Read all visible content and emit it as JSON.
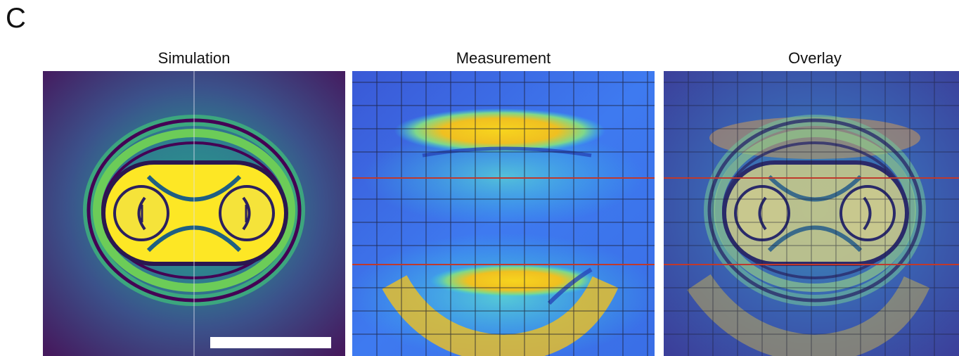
{
  "figure": {
    "panel_letter": "C",
    "panels": [
      {
        "title": "Simulation"
      },
      {
        "title": "Measurement"
      },
      {
        "title": "Overlay"
      }
    ],
    "colors": {
      "viridis_dark": "#440154",
      "viridis_blue": "#3b528b",
      "viridis_teal": "#21918c",
      "viridis_green": "#5ec962",
      "viridis_yellow": "#fde725",
      "jet_blue": "#2b5cf0",
      "jet_cyan": "#33c8e6",
      "jet_yellow": "#f7d41e",
      "grid_line": "#1a1a2e",
      "red_line": "#c0392b"
    }
  }
}
